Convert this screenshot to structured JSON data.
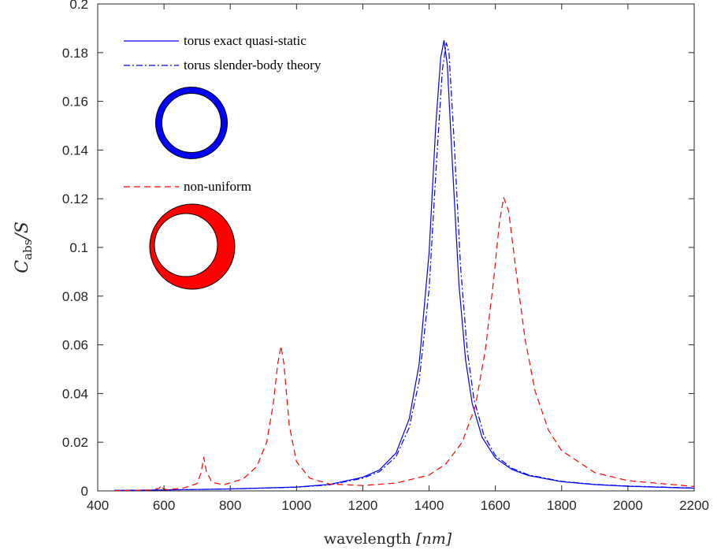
{
  "chart_data": {
    "type": "line",
    "xlabel_text": "wavelength ",
    "xlabel_unit": "[nm]",
    "ylabel_base": "C",
    "ylabel_sub": "abs",
    "ylabel_tail": "/S",
    "xlim": [
      400,
      2200
    ],
    "ylim": [
      0,
      0.2
    ],
    "xticks": [
      400,
      600,
      800,
      1000,
      1200,
      1400,
      1600,
      1800,
      2000,
      2200
    ],
    "yticks": [
      0,
      0.02,
      0.04,
      0.06,
      0.08,
      0.1,
      0.12,
      0.14,
      0.16,
      0.18,
      0.2
    ],
    "xtick_labels": [
      "400",
      "600",
      "800",
      "1000",
      "1200",
      "1400",
      "1600",
      "1800",
      "2000",
      "2200"
    ],
    "ytick_labels": [
      "0",
      "0.02",
      "0.04",
      "0.06",
      "0.08",
      "0.1",
      "0.12",
      "0.14",
      "0.16",
      "0.18",
      "0.2"
    ],
    "grid": false,
    "legend_position": "top-left",
    "series": [
      {
        "name": "torus exact quasi-static",
        "color": "#0000ff",
        "style": "solid",
        "x": [
          450,
          600,
          800,
          1000,
          1100,
          1200,
          1250,
          1300,
          1340,
          1370,
          1400,
          1420,
          1435,
          1445,
          1455,
          1470,
          1490,
          1510,
          1530,
          1560,
          1600,
          1650,
          1700,
          1800,
          1900,
          2000,
          2200
        ],
        "y": [
          0.0002,
          0.0004,
          0.0008,
          0.0016,
          0.0027,
          0.0056,
          0.0086,
          0.0155,
          0.0295,
          0.052,
          0.098,
          0.15,
          0.178,
          0.185,
          0.175,
          0.135,
          0.085,
          0.054,
          0.036,
          0.022,
          0.0135,
          0.0088,
          0.0063,
          0.0038,
          0.0026,
          0.0019,
          0.0011
        ]
      },
      {
        "name": "torus slender-body theory",
        "color": "#0000ff",
        "style": "dashdot",
        "x": [
          450,
          600,
          800,
          1000,
          1100,
          1200,
          1250,
          1300,
          1340,
          1370,
          1400,
          1420,
          1440,
          1452,
          1460,
          1475,
          1495,
          1515,
          1535,
          1565,
          1600,
          1650,
          1700,
          1800,
          1900,
          2000,
          2200
        ],
        "y": [
          0.0002,
          0.0004,
          0.0008,
          0.0015,
          0.0025,
          0.0052,
          0.0079,
          0.014,
          0.026,
          0.045,
          0.083,
          0.13,
          0.173,
          0.184,
          0.18,
          0.145,
          0.092,
          0.058,
          0.038,
          0.023,
          0.0145,
          0.0093,
          0.0066,
          0.0039,
          0.0027,
          0.002,
          0.0012
        ]
      },
      {
        "name": "non-uniform",
        "color": "#ff0000",
        "style": "dashed",
        "x": [
          450,
          560,
          585,
          592,
          598,
          610,
          660,
          700,
          712,
          720,
          728,
          745,
          780,
          840,
          880,
          910,
          930,
          943,
          953,
          962,
          978,
          1000,
          1040,
          1100,
          1200,
          1300,
          1400,
          1450,
          1500,
          1540,
          1570,
          1595,
          1612,
          1625,
          1640,
          1660,
          1690,
          1720,
          1760,
          1800,
          1900,
          2000,
          2200
        ],
        "y": [
          0.0001,
          0.0004,
          0.001,
          0.0022,
          0.0008,
          0.0005,
          0.0012,
          0.003,
          0.0075,
          0.0138,
          0.008,
          0.0035,
          0.0025,
          0.005,
          0.01,
          0.02,
          0.036,
          0.052,
          0.0595,
          0.052,
          0.027,
          0.012,
          0.0052,
          0.0028,
          0.0022,
          0.0032,
          0.0065,
          0.011,
          0.02,
          0.035,
          0.058,
          0.087,
          0.11,
          0.1205,
          0.115,
          0.093,
          0.062,
          0.041,
          0.025,
          0.0165,
          0.0075,
          0.0042,
          0.0018
        ]
      }
    ]
  },
  "insets": [
    {
      "fill": "#0000ff",
      "shape": "uniform-torus"
    },
    {
      "fill": "#ff0000",
      "shape": "non-uniform-torus"
    }
  ]
}
